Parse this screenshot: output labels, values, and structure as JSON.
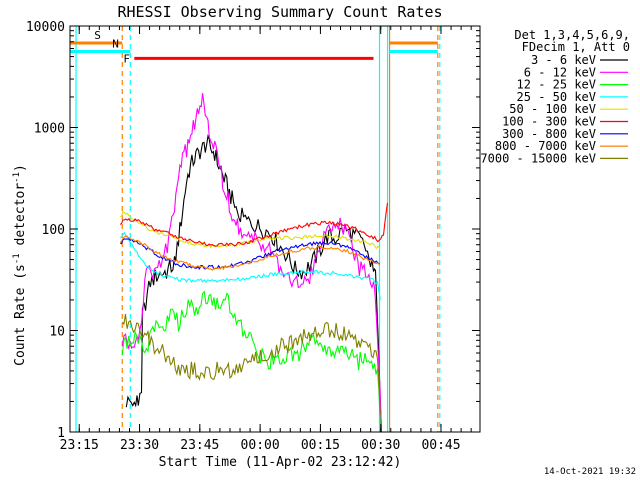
{
  "chart_data": {
    "type": "line",
    "title": "RHESSI Observing Summary Count Rates",
    "xlabel": "Start Time (11-Apr-02 23:12:42)",
    "ylabel": "Count Rate (s⁻¹ detector⁻¹)",
    "y_log_scale": true,
    "xlim_minutes": [
      0,
      102
    ],
    "ylim": [
      1,
      10000
    ],
    "x_ticks": [
      {
        "minute": 2.3,
        "label": "23:15"
      },
      {
        "minute": 17.3,
        "label": "23:30"
      },
      {
        "minute": 32.3,
        "label": "23:45"
      },
      {
        "minute": 47.3,
        "label": "00:00"
      },
      {
        "minute": 62.3,
        "label": "00:15"
      },
      {
        "minute": 77.3,
        "label": "00:30"
      },
      {
        "minute": 92.3,
        "label": "00:45"
      }
    ],
    "y_ticks": [
      {
        "value": 1,
        "label": "1"
      },
      {
        "value": 10,
        "label": "10"
      },
      {
        "value": 100,
        "label": "100"
      },
      {
        "value": 1000,
        "label": "1000"
      },
      {
        "value": 10000,
        "label": "10000"
      }
    ],
    "legend_header": [
      "Det 1,3,4,5,6,9,",
      "FDecim 1, Att 0"
    ],
    "legend_position": "right",
    "series": [
      {
        "name": "3 - 6 keV",
        "color": "#000000",
        "x": [
          14,
          16,
          17,
          17.8,
          18,
          20,
          22,
          24,
          26,
          27,
          28,
          29,
          30,
          31,
          32,
          33,
          34,
          35,
          36,
          37,
          38,
          39,
          40,
          41,
          42,
          44,
          46,
          48,
          50,
          52,
          54,
          56,
          58,
          60,
          62,
          64,
          66,
          68,
          70,
          72,
          74,
          75.5,
          76,
          76.8,
          77.5
        ],
        "y": [
          2,
          2,
          2,
          2.2,
          14,
          30,
          36,
          38,
          45,
          80,
          150,
          300,
          420,
          500,
          560,
          620,
          700,
          620,
          560,
          420,
          340,
          270,
          210,
          170,
          140,
          120,
          110,
          100,
          90,
          70,
          55,
          40,
          38,
          45,
          60,
          85,
          80,
          100,
          90,
          80,
          60,
          40,
          35,
          6,
          1
        ]
      },
      {
        "name": "6 - 12 keV",
        "color": "#ff00ff",
        "x": [
          13,
          15,
          16,
          17,
          19,
          21,
          23,
          25,
          26,
          27,
          28,
          29,
          30,
          31,
          32,
          33,
          34,
          35,
          36,
          37,
          38,
          39,
          40,
          41,
          42,
          44,
          46,
          48,
          50,
          52,
          54,
          56,
          58,
          60,
          62,
          64,
          66,
          68,
          70,
          72,
          74,
          75.5,
          76,
          76.8,
          77.5
        ],
        "y": [
          8,
          8,
          8,
          8,
          35,
          40,
          45,
          90,
          180,
          320,
          500,
          600,
          800,
          1100,
          1500,
          1800,
          1100,
          800,
          650,
          500,
          300,
          220,
          160,
          120,
          100,
          90,
          80,
          75,
          65,
          45,
          35,
          30,
          30,
          35,
          60,
          110,
          120,
          100,
          70,
          40,
          35,
          25,
          20,
          5,
          1
        ]
      },
      {
        "name": "12 - 25 keV",
        "color": "#00ff00",
        "x": [
          13,
          15,
          17,
          19,
          21,
          23,
          25,
          27,
          29,
          31,
          33,
          35,
          37,
          39,
          41,
          43,
          45,
          47,
          49,
          51,
          53,
          55,
          57,
          59,
          61,
          63,
          65,
          67,
          69,
          71,
          73,
          75,
          76.5,
          77.2
        ],
        "y": [
          7,
          8,
          8,
          7,
          10,
          11,
          14,
          12,
          18,
          15,
          20,
          22,
          16,
          20,
          12,
          10,
          8,
          6,
          5,
          5,
          5,
          6,
          6,
          7,
          8,
          7,
          6,
          7,
          6,
          5,
          5,
          5,
          4,
          1.2
        ]
      },
      {
        "name": "25 - 50 keV",
        "color": "#00ffff",
        "x": [
          12.5,
          13.5,
          15,
          17,
          19,
          21,
          23,
          25,
          27,
          29,
          31,
          33,
          35,
          37,
          39,
          41,
          43,
          45,
          47,
          49,
          51,
          53,
          55,
          57,
          59,
          61,
          63,
          65,
          67,
          69,
          71,
          73,
          75,
          76.5,
          77.2
        ],
        "y": [
          80,
          95,
          75,
          55,
          42,
          38,
          35,
          33,
          32,
          31,
          31,
          31,
          31,
          31,
          32,
          32,
          32,
          33,
          34,
          35,
          36,
          36,
          37,
          37,
          38,
          38,
          37,
          37,
          36,
          35,
          34,
          33,
          32,
          30,
          20
        ]
      },
      {
        "name": "50 - 100 keV",
        "color": "#e0e000",
        "x": [
          12.5,
          13.5,
          15,
          17,
          19,
          21,
          23,
          25,
          27,
          29,
          31,
          33,
          35,
          37,
          39,
          41,
          43,
          45,
          47,
          49,
          51,
          53,
          55,
          57,
          59,
          61,
          63,
          65,
          67,
          69,
          71,
          73,
          75,
          77
        ],
        "y": [
          130,
          150,
          130,
          120,
          105,
          95,
          90,
          85,
          80,
          75,
          72,
          70,
          68,
          68,
          68,
          70,
          72,
          75,
          78,
          80,
          80,
          82,
          82,
          83,
          84,
          85,
          85,
          85,
          83,
          80,
          78,
          75,
          70,
          65
        ]
      },
      {
        "name": "100 - 300 keV",
        "color": "#ff0000",
        "x": [
          12.5,
          13.5,
          15,
          17,
          19,
          21,
          23,
          25,
          27,
          29,
          31,
          33,
          35,
          37,
          39,
          41,
          43,
          45,
          47,
          49,
          51,
          53,
          55,
          57,
          59,
          61,
          63,
          65,
          67,
          69,
          71,
          73,
          75,
          77,
          78,
          79
        ],
        "y": [
          115,
          125,
          125,
          120,
          110,
          100,
          95,
          88,
          82,
          78,
          75,
          72,
          70,
          70,
          70,
          70,
          72,
          75,
          80,
          85,
          90,
          95,
          100,
          105,
          110,
          112,
          115,
          115,
          112,
          108,
          100,
          92,
          85,
          75,
          90,
          180
        ]
      },
      {
        "name": "300 - 800 keV",
        "color": "#0000ff",
        "x": [
          12.5,
          13.5,
          15,
          17,
          19,
          21,
          23,
          25,
          27,
          29,
          31,
          33,
          35,
          37,
          39,
          41,
          43,
          45,
          47,
          49,
          51,
          53,
          55,
          57,
          59,
          61,
          63,
          65,
          67,
          69,
          71,
          73,
          75,
          77
        ],
        "y": [
          70,
          80,
          78,
          72,
          65,
          58,
          52,
          48,
          45,
          43,
          42,
          42,
          42,
          42,
          43,
          44,
          46,
          48,
          52,
          56,
          60,
          63,
          66,
          68,
          70,
          72,
          73,
          72,
          70,
          66,
          60,
          55,
          50,
          45
        ]
      },
      {
        "name": "800 - 7000 keV",
        "color": "#ff8000",
        "x": [
          12.5,
          13.5,
          15,
          17,
          19,
          21,
          23,
          25,
          27,
          29,
          31,
          33,
          35,
          37,
          39,
          41,
          43,
          45,
          47,
          49,
          51,
          53,
          55,
          57,
          59,
          61,
          63,
          65,
          67,
          69,
          71,
          73,
          75,
          77
        ],
        "y": [
          75,
          85,
          82,
          75,
          68,
          60,
          55,
          50,
          47,
          45,
          43,
          42,
          41,
          41,
          42,
          43,
          45,
          47,
          50,
          53,
          56,
          58,
          60,
          62,
          64,
          65,
          66,
          65,
          63,
          60,
          56,
          52,
          48,
          44
        ]
      },
      {
        "name": "7000 - 15000 keV",
        "color": "#808000",
        "x": [
          13,
          15,
          17,
          19,
          21,
          23,
          25,
          27,
          29,
          31,
          33,
          35,
          37,
          39,
          41,
          43,
          45,
          47,
          49,
          51,
          53,
          55,
          57,
          59,
          61,
          63,
          65,
          67,
          69,
          71,
          73,
          75,
          76.5,
          77.2
        ],
        "y": [
          12,
          12,
          11,
          9,
          7,
          6,
          5,
          4.5,
          4,
          4,
          4,
          4,
          4,
          4,
          4,
          4.5,
          5,
          5.5,
          6,
          6.5,
          7,
          7.5,
          8.5,
          9.5,
          10,
          10,
          10,
          9.5,
          9,
          8,
          7,
          6,
          5,
          1.5
        ]
      }
    ],
    "annotations": [
      {
        "id": "s-label",
        "text": "S",
        "color": "#ff8000",
        "x_start": 0,
        "x_end": 13,
        "level": 6800
      },
      {
        "id": "n-label",
        "text": "N",
        "color": "#00ffff",
        "x_start": 0,
        "x_end": 15,
        "level": 5600
      },
      {
        "id": "f-label",
        "text": "F",
        "color": "#ff0000",
        "x_start": 16,
        "x_end": 75.5,
        "level": 4800
      },
      {
        "id": "s-right",
        "text": "",
        "color": "#ff8000",
        "x_start": 79.5,
        "x_end": 91.5,
        "level": 6800
      },
      {
        "id": "n-right",
        "text": "",
        "color": "#00ffff",
        "x_start": 79.5,
        "x_end": 91.5,
        "level": 5600
      }
    ],
    "vertical_markers": [
      {
        "minute": 1.5,
        "color": "#00ffff",
        "style": "solid"
      },
      {
        "minute": 13,
        "color": "#ff8000",
        "style": "dashed"
      },
      {
        "minute": 15,
        "color": "#00ffff",
        "style": "dashed"
      },
      {
        "minute": 77,
        "color": "#00ffff",
        "style": "solid"
      },
      {
        "minute": 79,
        "color": "#00ffff",
        "style": "solid"
      },
      {
        "minute": 79.5,
        "color": "#ff8000",
        "style": "solid"
      },
      {
        "minute": 91.5,
        "color": "#ff8000",
        "style": "dashed"
      },
      {
        "minute": 92,
        "color": "#00ffff",
        "style": "dashed"
      }
    ]
  },
  "footer": {
    "timestamp": "14-Oct-2021 19:32"
  }
}
